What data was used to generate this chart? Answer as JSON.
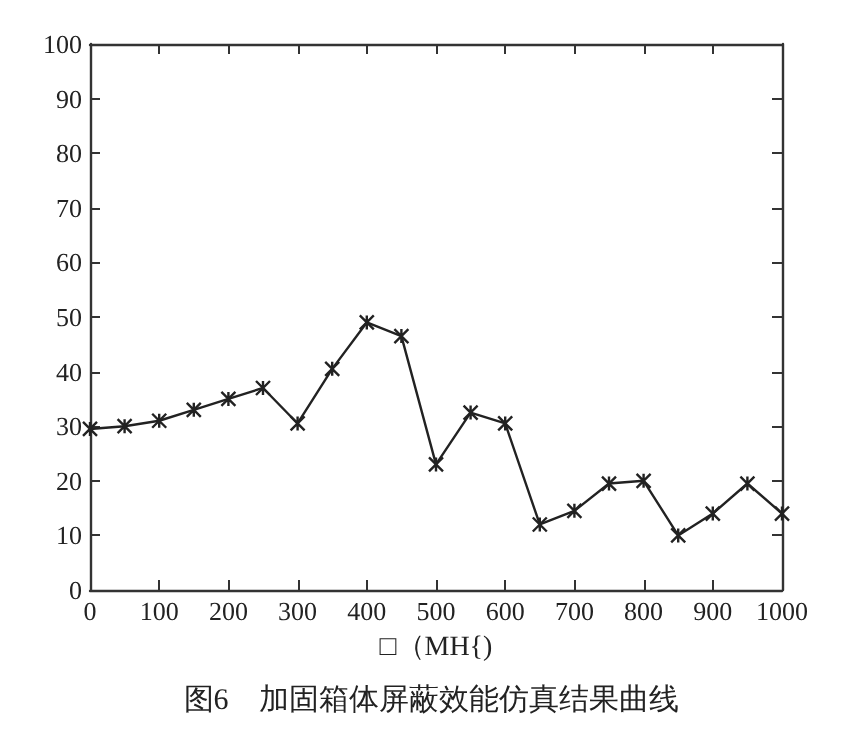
{
  "chart_data": {
    "type": "line",
    "title": "图6　加固箱体屏蔽效能仿真结果曲线",
    "xlabel": "□（MH{)",
    "x": [
      0,
      50,
      100,
      150,
      200,
      250,
      300,
      350,
      400,
      450,
      500,
      550,
      600,
      650,
      700,
      750,
      800,
      850,
      900,
      950,
      1000
    ],
    "series": [
      {
        "color": "#222222",
        "values": [
          29.5,
          30,
          31,
          33,
          35,
          37,
          30.5,
          40.5,
          49,
          46.5,
          23,
          32.5,
          30.5,
          12,
          14.5,
          19.5,
          20,
          10,
          14,
          19.5,
          14
        ]
      }
    ],
    "xlim": [
      0,
      1000
    ],
    "xticks": [
      0,
      100,
      200,
      300,
      400,
      500,
      600,
      700,
      800,
      900,
      1000
    ],
    "ylim": [
      0,
      100
    ],
    "yticks": [
      0,
      10,
      20,
      30,
      40,
      50,
      60,
      70,
      80,
      90,
      100
    ],
    "marker": "cross",
    "line_style": "solid"
  }
}
